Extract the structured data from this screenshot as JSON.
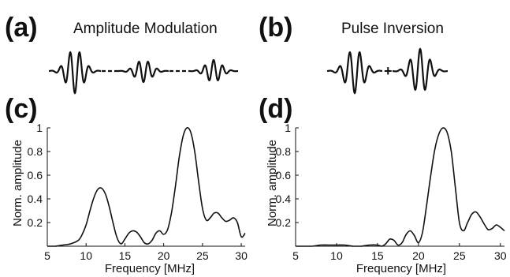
{
  "panels": [
    {
      "letter": "(a)",
      "title": "Amplitude Modulation"
    },
    {
      "letter": "(b)",
      "title": "Pulse Inversion"
    },
    {
      "letter": "(c)"
    },
    {
      "letter": "(d)"
    }
  ],
  "pulse_b_operator": "+",
  "colors": {
    "line": "#111111",
    "background": "#ffffff"
  },
  "chart_data": [
    {
      "type": "line",
      "panel": "(c)",
      "xlabel": "Frequency [MHz]",
      "ylabel": "Norm. amplitude",
      "xlim": [
        5,
        30.5
      ],
      "ylim": [
        0,
        1.0
      ],
      "xticks": [
        5,
        10,
        15,
        20,
        25,
        30
      ],
      "yticks": [
        0.2,
        0.4,
        0.6,
        0.8,
        1
      ],
      "ytick_labels": [
        "0.2",
        "0.4",
        "0.6",
        "0.8",
        "1"
      ],
      "grid": false,
      "x": [
        5.0,
        6.0,
        7.0,
        8.0,
        9.0,
        9.5,
        10.0,
        10.5,
        11.0,
        11.5,
        12.0,
        12.5,
        13.0,
        13.5,
        14.0,
        14.5,
        15.0,
        15.5,
        16.0,
        16.5,
        17.0,
        17.5,
        18.0,
        18.5,
        19.0,
        19.5,
        20.0,
        20.5,
        21.0,
        21.5,
        22.0,
        22.5,
        23.0,
        23.5,
        24.0,
        24.5,
        25.0,
        25.5,
        26.0,
        26.5,
        27.0,
        27.5,
        28.0,
        28.5,
        29.0,
        29.5,
        30.0,
        30.5
      ],
      "y": [
        0.0,
        0.0,
        0.01,
        0.02,
        0.05,
        0.1,
        0.18,
        0.3,
        0.41,
        0.48,
        0.49,
        0.44,
        0.33,
        0.19,
        0.07,
        0.02,
        0.06,
        0.11,
        0.13,
        0.12,
        0.08,
        0.03,
        0.02,
        0.05,
        0.11,
        0.13,
        0.1,
        0.14,
        0.28,
        0.5,
        0.75,
        0.93,
        1.0,
        0.96,
        0.8,
        0.55,
        0.32,
        0.22,
        0.24,
        0.28,
        0.28,
        0.24,
        0.21,
        0.22,
        0.24,
        0.2,
        0.08,
        0.11
      ]
    },
    {
      "type": "line",
      "panel": "(d)",
      "xlabel": "Frequency [MHz]",
      "ylabel": "Norm. amplitude",
      "xlim": [
        5,
        30.5
      ],
      "ylim": [
        0,
        1.0
      ],
      "xticks": [
        5,
        10,
        15,
        20,
        25,
        30
      ],
      "yticks": [
        0.2,
        0.4,
        0.6,
        0.8,
        1
      ],
      "ytick_labels": [
        "0.2",
        "0.4",
        "0.6",
        "0.8",
        "1"
      ],
      "grid": false,
      "x": [
        5.0,
        6.0,
        7.0,
        8.0,
        9.0,
        10.0,
        11.0,
        12.0,
        13.0,
        14.0,
        15.0,
        15.5,
        16.0,
        16.5,
        17.0,
        17.5,
        18.0,
        18.5,
        19.0,
        19.5,
        20.0,
        20.5,
        21.0,
        21.5,
        22.0,
        22.5,
        23.0,
        23.5,
        24.0,
        24.5,
        25.0,
        25.5,
        26.0,
        26.5,
        27.0,
        27.5,
        28.0,
        28.5,
        29.0,
        29.5,
        30.0,
        30.5
      ],
      "y": [
        0.0,
        0.0,
        0.0,
        0.01,
        0.01,
        0.01,
        0.01,
        0.0,
        0.0,
        0.01,
        0.01,
        0.0,
        0.02,
        0.06,
        0.05,
        0.01,
        0.03,
        0.1,
        0.13,
        0.09,
        0.03,
        0.12,
        0.35,
        0.6,
        0.82,
        0.95,
        1.0,
        0.96,
        0.8,
        0.5,
        0.2,
        0.13,
        0.2,
        0.27,
        0.29,
        0.25,
        0.19,
        0.14,
        0.15,
        0.18,
        0.16,
        0.13
      ]
    }
  ]
}
